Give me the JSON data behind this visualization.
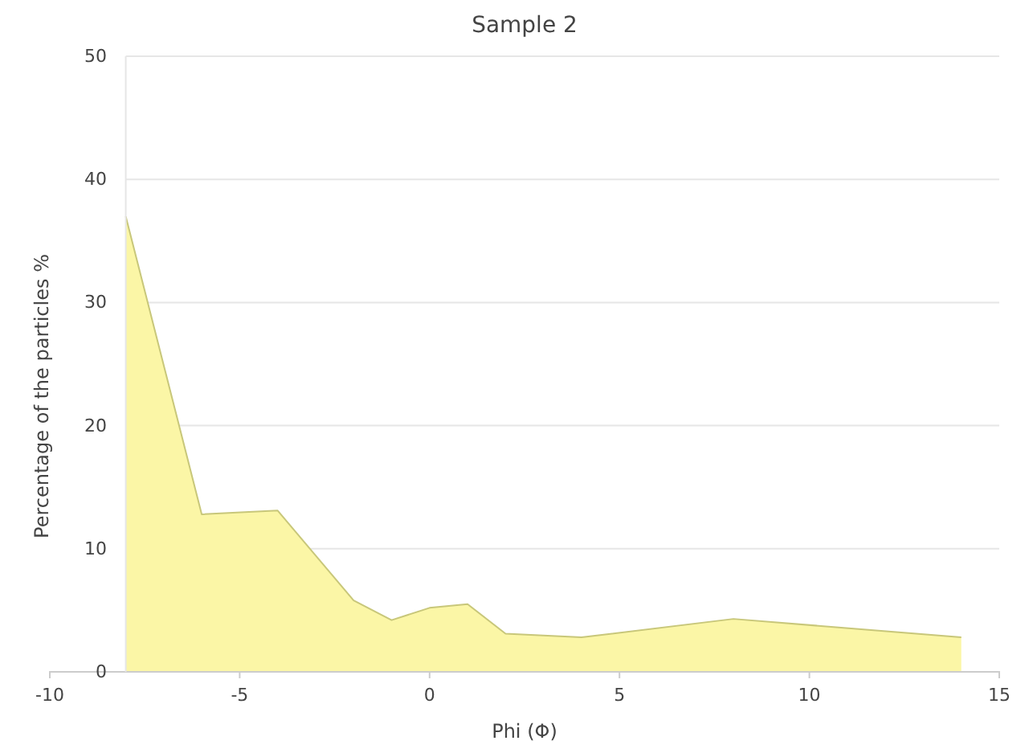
{
  "chart_data": {
    "type": "area",
    "title": "Sample 2",
    "xlabel": "Phi (Φ)",
    "ylabel": "Percentage of the particles %",
    "x": [
      -8,
      -6,
      -4,
      -2,
      -1,
      0,
      1,
      2,
      4,
      8,
      14
    ],
    "series": [
      {
        "color": "#fbf6a6",
        "values": [
          37,
          12.8,
          13.1,
          5.8,
          4.2,
          5.2,
          5.5,
          3.1,
          2.8,
          4.3,
          2.8
        ]
      }
    ],
    "xlim": [
      -10,
      15
    ],
    "xticks": [
      -10,
      -5,
      0,
      5,
      10,
      15
    ],
    "ylim": [
      0,
      50
    ],
    "yticks": [
      0,
      10,
      20,
      30,
      40,
      50
    ],
    "grid": "y"
  }
}
